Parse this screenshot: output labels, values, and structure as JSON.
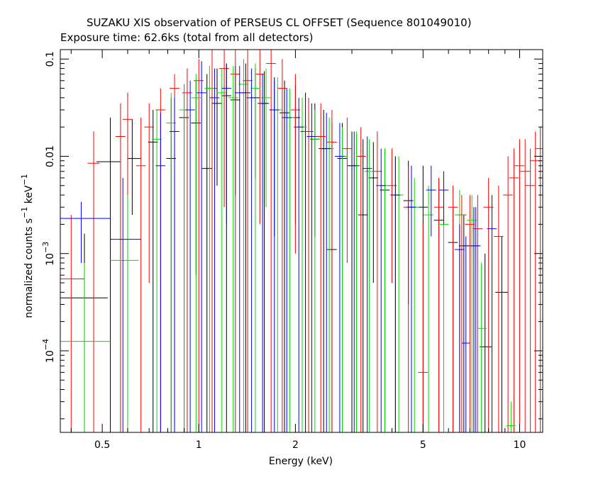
{
  "header": {
    "title": "SUZAKU XIS observation of PERSEUS CL OFFSET (Sequence 801049010)",
    "subtitle": "Exposure time: 62.6ks (total from all detectors)"
  },
  "chart_data": {
    "type": "scatter",
    "title": "SUZAKU XIS observation of PERSEUS CL OFFSET (Sequence 801049010)",
    "subtitle": "Exposure time: 62.6ks (total from all detectors)",
    "xlabel": "Energy (keV)",
    "ylabel": {
      "base": "normalized counts s",
      "exp1": "−1",
      "mid": " keV",
      "exp2": "−1"
    },
    "xscale": "log",
    "yscale": "log",
    "xlim": [
      0.37,
      11.8
    ],
    "ylim": [
      1.45e-05,
      0.125
    ],
    "x_ticks": [
      {
        "value": 0.5,
        "label": "0.5"
      },
      {
        "value": 1,
        "label": "1"
      },
      {
        "value": 2,
        "label": "2"
      },
      {
        "value": 5,
        "label": "5"
      },
      {
        "value": 10,
        "label": "10"
      }
    ],
    "y_ticks": [
      {
        "value": 0.1,
        "label": "0.1"
      },
      {
        "value": 0.01,
        "label": "0.01"
      },
      {
        "value": 0.001,
        "base": "10",
        "exp": "−3"
      },
      {
        "value": 0.0001,
        "base": "10",
        "exp": "−4"
      }
    ],
    "grid": false,
    "legend": "none",
    "series": [
      {
        "color": "#000000",
        "points": [
          {
            "x": 0.44,
            "xlo": 0.37,
            "xhi": 0.52,
            "y": 0.00035,
            "ylo": 1.45e-05,
            "yhi": 0.0016
          },
          {
            "x": 0.53,
            "xlo": 0.48,
            "xhi": 0.57,
            "y": 0.0088,
            "ylo": 1.45e-05,
            "yhi": 0.025
          },
          {
            "x": 0.62,
            "xlo": 0.6,
            "xhi": 0.66,
            "y": 0.0095,
            "ylo": 0.0025,
            "yhi": 0.024
          },
          {
            "x": 0.72,
            "y": 0.014,
            "ylo": 1.45e-05,
            "yhi": 0.03
          },
          {
            "x": 0.82,
            "y": 0.0095,
            "ylo": 1.45e-05,
            "yhi": 0.04
          },
          {
            "x": 0.9,
            "y": 0.025,
            "ylo": 1.45e-05,
            "yhi": 0.055
          },
          {
            "x": 0.98,
            "y": 0.022,
            "ylo": 0.0006,
            "yhi": 0.06
          },
          {
            "x": 1.06,
            "y": 0.0075,
            "ylo": 1.45e-05,
            "yhi": 0.07
          },
          {
            "x": 1.14,
            "y": 0.035,
            "ylo": 0.005,
            "yhi": 0.08
          },
          {
            "x": 1.22,
            "y": 0.042,
            "ylo": 1.45e-05,
            "yhi": 0.09
          },
          {
            "x": 1.3,
            "y": 0.038,
            "ylo": 0.004,
            "yhi": 0.085
          },
          {
            "x": 1.4,
            "y": 0.045,
            "ylo": 1.45e-05,
            "yhi": 0.09
          },
          {
            "x": 1.5,
            "y": 0.04,
            "ylo": 0.006,
            "yhi": 0.08
          },
          {
            "x": 1.6,
            "y": 0.035,
            "ylo": 1.45e-05,
            "yhi": 0.075
          },
          {
            "x": 1.72,
            "y": 0.03,
            "ylo": 0.0015,
            "yhi": 0.065
          },
          {
            "x": 1.85,
            "y": 0.028,
            "ylo": 1.45e-05,
            "yhi": 0.06
          },
          {
            "x": 2.0,
            "y": 0.025,
            "ylo": 0.002,
            "yhi": 0.055
          },
          {
            "x": 2.15,
            "y": 0.018,
            "ylo": 1.45e-05,
            "yhi": 0.045
          },
          {
            "x": 2.3,
            "y": 0.015,
            "ylo": 0.0015,
            "yhi": 0.035
          },
          {
            "x": 2.45,
            "y": 0.012,
            "ylo": 1.45e-05,
            "yhi": 0.03
          },
          {
            "x": 2.6,
            "y": 0.0011,
            "ylo": 1.45e-05,
            "yhi": 0.022
          },
          {
            "x": 2.8,
            "y": 0.0095,
            "ylo": 0.0006,
            "yhi": 0.022
          },
          {
            "x": 3.0,
            "y": 0.008,
            "ylo": 1.45e-05,
            "yhi": 0.018
          },
          {
            "x": 3.25,
            "y": 0.0025,
            "ylo": 1.45e-05,
            "yhi": 0.015
          },
          {
            "x": 3.5,
            "y": 0.006,
            "ylo": 0.0005,
            "yhi": 0.014
          },
          {
            "x": 3.8,
            "y": 0.0045,
            "ylo": 1.45e-05,
            "yhi": 0.012
          },
          {
            "x": 4.1,
            "y": 0.004,
            "ylo": 1.45e-05,
            "yhi": 0.01
          },
          {
            "x": 4.5,
            "y": 0.0035,
            "ylo": 0.0003,
            "yhi": 0.009
          },
          {
            "x": 5.0,
            "y": 0.003,
            "ylo": 1.45e-05,
            "yhi": 0.008
          },
          {
            "x": 5.6,
            "y": 0.0022,
            "ylo": 1.45e-05,
            "yhi": 0.006
          },
          {
            "x": 6.2,
            "y": 0.0013,
            "ylo": 1.45e-05,
            "yhi": 0.003
          },
          {
            "x": 6.7,
            "y": 0.0012,
            "ylo": 1.45e-05,
            "yhi": 0.0025
          },
          {
            "x": 7.2,
            "xlo": 6.9,
            "xhi": 7.5,
            "y": 0.0012,
            "ylo": 1.45e-05,
            "yhi": 0.003
          },
          {
            "x": 7.8,
            "xlo": 7.5,
            "xhi": 8.2,
            "y": 0.00011,
            "ylo": 1.45e-05,
            "yhi": 0.001
          },
          {
            "x": 8.8,
            "xlo": 8.4,
            "xhi": 9.2,
            "y": 0.0004,
            "ylo": 1.45e-05,
            "yhi": 0.0015
          }
        ]
      },
      {
        "color": "#ff0000",
        "points": [
          {
            "x": 0.4,
            "xlo": 0.37,
            "xhi": 0.44,
            "y": 0.00055,
            "ylo": 1.45e-05,
            "yhi": 0.0025
          },
          {
            "x": 0.47,
            "xlo": 0.45,
            "xhi": 0.49,
            "y": 0.0085,
            "ylo": 1.45e-05,
            "yhi": 0.018
          },
          {
            "x": 0.57,
            "y": 0.016,
            "ylo": 1.45e-05,
            "yhi": 0.035
          },
          {
            "x": 0.6,
            "y": 0.024,
            "ylo": 0.004,
            "yhi": 0.045
          },
          {
            "x": 0.66,
            "y": 0.008,
            "ylo": 1.45e-05,
            "yhi": 0.025
          },
          {
            "x": 0.7,
            "y": 0.02,
            "ylo": 0.0005,
            "yhi": 0.035
          },
          {
            "x": 0.76,
            "y": 0.03,
            "ylo": 1.45e-05,
            "yhi": 0.05
          },
          {
            "x": 0.84,
            "y": 0.05,
            "ylo": 1.45e-05,
            "yhi": 0.07
          },
          {
            "x": 0.92,
            "y": 0.045,
            "ylo": 1.45e-05,
            "yhi": 0.08
          },
          {
            "x": 1.0,
            "y": 0.06,
            "ylo": 1.45e-05,
            "yhi": 0.1
          },
          {
            "x": 1.1,
            "y": 0.05,
            "ylo": 1.45e-05,
            "yhi": 0.125
          },
          {
            "x": 1.2,
            "y": 0.08,
            "ylo": 0.003,
            "yhi": 0.125
          },
          {
            "x": 1.3,
            "y": 0.07,
            "ylo": 1.45e-05,
            "yhi": 0.125
          },
          {
            "x": 1.42,
            "y": 0.06,
            "ylo": 1.45e-05,
            "yhi": 0.125
          },
          {
            "x": 1.55,
            "y": 0.07,
            "ylo": 0.002,
            "yhi": 0.125
          },
          {
            "x": 1.68,
            "y": 0.09,
            "ylo": 1.45e-05,
            "yhi": 0.125
          },
          {
            "x": 1.82,
            "y": 0.05,
            "ylo": 1.45e-05,
            "yhi": 0.1
          },
          {
            "x": 2.0,
            "y": 0.03,
            "ylo": 0.001,
            "yhi": 0.07
          },
          {
            "x": 2.2,
            "y": 0.018,
            "ylo": 1.45e-05,
            "yhi": 0.04
          },
          {
            "x": 2.4,
            "y": 0.016,
            "ylo": 1.45e-05,
            "yhi": 0.035
          },
          {
            "x": 2.6,
            "y": 0.014,
            "ylo": 1.45e-05,
            "yhi": 0.03
          },
          {
            "x": 2.9,
            "y": 0.012,
            "ylo": 0.0008,
            "yhi": 0.025
          },
          {
            "x": 3.2,
            "y": 0.01,
            "ylo": 1.45e-05,
            "yhi": 0.02
          },
          {
            "x": 3.6,
            "y": 0.007,
            "ylo": 1.45e-05,
            "yhi": 0.018
          },
          {
            "x": 4.0,
            "y": 0.005,
            "ylo": 0.0005,
            "yhi": 0.012
          },
          {
            "x": 4.5,
            "y": 0.003,
            "ylo": 1.45e-05,
            "yhi": 0.008
          },
          {
            "x": 5.0,
            "y": 6e-05,
            "ylo": 1.45e-05,
            "yhi": 0.002
          },
          {
            "x": 5.6,
            "y": 0.003,
            "ylo": 1.45e-05,
            "yhi": 0.006
          },
          {
            "x": 6.2,
            "y": 0.003,
            "ylo": 1.45e-05,
            "yhi": 0.005
          },
          {
            "x": 6.6,
            "y": 0.0025,
            "ylo": 1.45e-05,
            "yhi": 0.004
          },
          {
            "x": 7.0,
            "y": 0.002,
            "ylo": 1.45e-05,
            "yhi": 0.004
          },
          {
            "x": 7.4,
            "y": 0.0018,
            "ylo": 1.45e-05,
            "yhi": 0.004
          },
          {
            "x": 8.0,
            "y": 0.003,
            "ylo": 1.45e-05,
            "yhi": 0.006
          },
          {
            "x": 8.6,
            "y": 0.0015,
            "ylo": 1.45e-05,
            "yhi": 0.005
          },
          {
            "x": 9.2,
            "y": 0.004,
            "ylo": 1.45e-05,
            "yhi": 0.01
          },
          {
            "x": 9.6,
            "y": 0.006,
            "ylo": 1.45e-05,
            "yhi": 0.012
          },
          {
            "x": 10.0,
            "y": 0.008,
            "ylo": 1.45e-05,
            "yhi": 0.015
          },
          {
            "x": 10.4,
            "y": 0.007,
            "ylo": 1.45e-05,
            "yhi": 0.015
          },
          {
            "x": 10.8,
            "y": 0.005,
            "ylo": 1.45e-05,
            "yhi": 0.012
          },
          {
            "x": 11.2,
            "y": 0.009,
            "ylo": 1.45e-05,
            "yhi": 0.018
          },
          {
            "x": 11.6,
            "y": 0.012,
            "ylo": 1.45e-05,
            "yhi": 0.02
          }
        ]
      },
      {
        "color": "#00dd00",
        "points": [
          {
            "x": 0.44,
            "xlo": 0.37,
            "xhi": 0.53,
            "y": 0.000125,
            "ylo": 1.45e-05,
            "yhi": 0.0008
          },
          {
            "x": 0.6,
            "xlo": 0.53,
            "xhi": 0.65,
            "y": 0.00085,
            "ylo": 1.45e-05,
            "yhi": 0.004
          },
          {
            "x": 0.74,
            "y": 0.015,
            "ylo": 1.45e-05,
            "yhi": 0.03
          },
          {
            "x": 0.82,
            "y": 0.022,
            "ylo": 1.45e-05,
            "yhi": 0.045
          },
          {
            "x": 0.9,
            "y": 0.03,
            "ylo": 1.45e-05,
            "yhi": 0.055
          },
          {
            "x": 0.98,
            "y": 0.04,
            "ylo": 1.45e-05,
            "yhi": 0.07
          },
          {
            "x": 1.08,
            "y": 0.05,
            "ylo": 1.45e-05,
            "yhi": 0.085
          },
          {
            "x": 1.18,
            "y": 0.045,
            "ylo": 1.45e-05,
            "yhi": 0.08
          },
          {
            "x": 1.28,
            "y": 0.04,
            "ylo": 1.45e-05,
            "yhi": 0.085
          },
          {
            "x": 1.38,
            "y": 0.055,
            "ylo": 1.45e-05,
            "yhi": 0.1
          },
          {
            "x": 1.5,
            "y": 0.05,
            "ylo": 1.45e-05,
            "yhi": 0.09
          },
          {
            "x": 1.62,
            "y": 0.04,
            "ylo": 0.003,
            "yhi": 0.08
          },
          {
            "x": 1.76,
            "y": 0.03,
            "ylo": 1.45e-05,
            "yhi": 0.065
          },
          {
            "x": 1.92,
            "y": 0.025,
            "ylo": 1.45e-05,
            "yhi": 0.05
          },
          {
            "x": 2.1,
            "y": 0.02,
            "ylo": 1.45e-05,
            "yhi": 0.04
          },
          {
            "x": 2.3,
            "y": 0.015,
            "ylo": 1.45e-05,
            "yhi": 0.03
          },
          {
            "x": 2.55,
            "y": 0.012,
            "ylo": 1.45e-05,
            "yhi": 0.025
          },
          {
            "x": 2.8,
            "y": 0.01,
            "ylo": 1.45e-05,
            "yhi": 0.02
          },
          {
            "x": 3.1,
            "y": 0.008,
            "ylo": 1.45e-05,
            "yhi": 0.018
          },
          {
            "x": 3.4,
            "y": 0.007,
            "ylo": 1.45e-05,
            "yhi": 0.015
          },
          {
            "x": 3.8,
            "y": 0.005,
            "ylo": 1.45e-05,
            "yhi": 0.012
          },
          {
            "x": 4.2,
            "y": 0.004,
            "ylo": 1.45e-05,
            "yhi": 0.01
          },
          {
            "x": 4.7,
            "y": 0.003,
            "ylo": 1.45e-05,
            "yhi": 0.006
          },
          {
            "x": 5.2,
            "y": 0.0025,
            "ylo": 1.45e-05,
            "yhi": 0.005
          },
          {
            "x": 5.8,
            "y": 0.002,
            "ylo": 1.45e-05,
            "yhi": 0.004
          },
          {
            "x": 6.5,
            "y": 0.0025,
            "ylo": 1.45e-05,
            "yhi": 0.0045
          },
          {
            "x": 7.1,
            "y": 0.0022,
            "ylo": 1.45e-05,
            "yhi": 0.004
          },
          {
            "x": 7.6,
            "xlo": 7.4,
            "xhi": 7.9,
            "y": 0.00017,
            "ylo": 1.45e-05,
            "yhi": 0.0008
          },
          {
            "x": 9.4,
            "xlo": 9.1,
            "xhi": 9.7,
            "y": 1.7e-05,
            "ylo": 1.45e-05,
            "yhi": 3e-05
          }
        ]
      },
      {
        "color": "#0000ff",
        "points": [
          {
            "x": 0.43,
            "xlo": 0.37,
            "xhi": 0.53,
            "y": 0.0023,
            "ylo": 0.0008,
            "yhi": 0.0034
          },
          {
            "x": 0.58,
            "xlo": 0.53,
            "xhi": 0.66,
            "y": 0.0014,
            "ylo": 1.45e-05,
            "yhi": 0.006
          },
          {
            "x": 0.76,
            "y": 0.008,
            "ylo": 1.45e-05,
            "yhi": 0.028
          },
          {
            "x": 0.84,
            "y": 0.018,
            "ylo": 1.45e-05,
            "yhi": 0.04
          },
          {
            "x": 0.94,
            "y": 0.03,
            "ylo": 1.45e-05,
            "yhi": 0.06
          },
          {
            "x": 1.02,
            "y": 0.045,
            "ylo": 1.45e-05,
            "yhi": 0.095
          },
          {
            "x": 1.12,
            "y": 0.04,
            "ylo": 1.45e-05,
            "yhi": 0.08
          },
          {
            "x": 1.22,
            "y": 0.05,
            "ylo": 0.002,
            "yhi": 0.09
          },
          {
            "x": 1.34,
            "y": 0.045,
            "ylo": 1.45e-05,
            "yhi": 0.085
          },
          {
            "x": 1.46,
            "y": 0.04,
            "ylo": 1.45e-05,
            "yhi": 0.08
          },
          {
            "x": 1.58,
            "y": 0.035,
            "ylo": 1.45e-05,
            "yhi": 0.07
          },
          {
            "x": 1.72,
            "y": 0.03,
            "ylo": 1.45e-05,
            "yhi": 0.06
          },
          {
            "x": 1.88,
            "y": 0.025,
            "ylo": 1.45e-05,
            "yhi": 0.05
          },
          {
            "x": 2.05,
            "y": 0.02,
            "ylo": 1.45e-05,
            "yhi": 0.04
          },
          {
            "x": 2.25,
            "y": 0.016,
            "ylo": 1.45e-05,
            "yhi": 0.035
          },
          {
            "x": 2.5,
            "y": 0.012,
            "ylo": 1.45e-05,
            "yhi": 0.028
          },
          {
            "x": 2.75,
            "y": 0.01,
            "ylo": 1.45e-05,
            "yhi": 0.022
          },
          {
            "x": 3.05,
            "y": 0.008,
            "ylo": 1.45e-05,
            "yhi": 0.018
          },
          {
            "x": 3.35,
            "y": 0.0075,
            "ylo": 1.45e-05,
            "yhi": 0.016
          },
          {
            "x": 3.7,
            "y": 0.005,
            "ylo": 1.45e-05,
            "yhi": 0.012
          },
          {
            "x": 4.1,
            "y": 0.004,
            "ylo": 1.45e-05,
            "yhi": 0.01
          },
          {
            "x": 4.6,
            "y": 0.003,
            "ylo": 1.45e-05,
            "yhi": 0.008
          },
          {
            "x": 5.3,
            "y": 0.0045,
            "ylo": 0.0015,
            "yhi": 0.008
          },
          {
            "x": 5.8,
            "y": 0.0045,
            "ylo": 0.002,
            "yhi": 0.007
          },
          {
            "x": 6.5,
            "y": 0.0011,
            "ylo": 1.45e-05,
            "yhi": 0.002
          },
          {
            "x": 6.8,
            "xlo": 6.6,
            "xhi": 7.0,
            "y": 0.00012,
            "ylo": 1.45e-05,
            "yhi": 0.0015
          },
          {
            "x": 7.3,
            "y": 0.0012,
            "ylo": 1.45e-05,
            "yhi": 0.003
          },
          {
            "x": 8.2,
            "y": 0.0018,
            "ylo": 1.45e-05,
            "yhi": 0.004
          }
        ]
      }
    ]
  }
}
